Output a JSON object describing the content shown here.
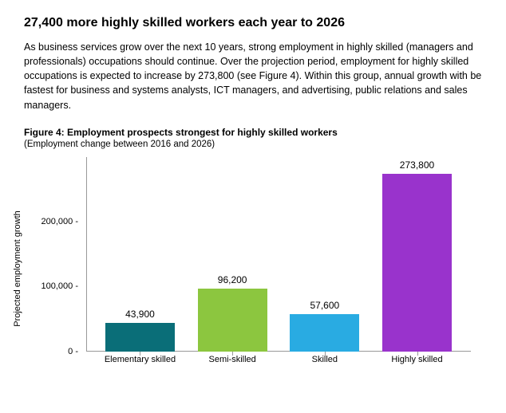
{
  "headline": "27,400 more highly skilled workers each year to 2026",
  "body_text": "As business services grow over the next 10 years, strong employment in highly skilled (managers and professionals) occupations should continue.  Over the projection period, employment for highly skilled occupations is expected to increase by 273,800 (see Figure 4).  Within this group, annual growth with be fastest for business and systems analysts, ICT managers, and advertising, public relations and sales managers.",
  "figure": {
    "title": "Figure 4: Employment prospects strongest for highly skilled workers",
    "subtitle": "(Employment change between 2016 and 2026)",
    "y_axis_label": "Projected employment growth",
    "type": "bar",
    "categories": [
      "Elementary skilled",
      "Semi-skilled",
      "Skilled",
      "Highly skilled"
    ],
    "values": [
      43900,
      96200,
      57600,
      273800
    ],
    "value_labels": [
      "43,900",
      "96,200",
      "57,600",
      "273,800"
    ],
    "bar_colors": [
      "#0a6e78",
      "#8cc63f",
      "#29abe2",
      "#9933cc"
    ],
    "ylim": [
      0,
      300000
    ],
    "yticks": [
      0,
      100000,
      200000
    ],
    "ytick_labels": [
      "0 -",
      "100,000 -",
      "200,000 -"
    ],
    "background_color": "#ffffff",
    "axis_color": "#999999",
    "label_fontsize": 11,
    "value_label_fontsize": 12,
    "bar_width_pct": 18,
    "bar_gap_pct": 6
  }
}
